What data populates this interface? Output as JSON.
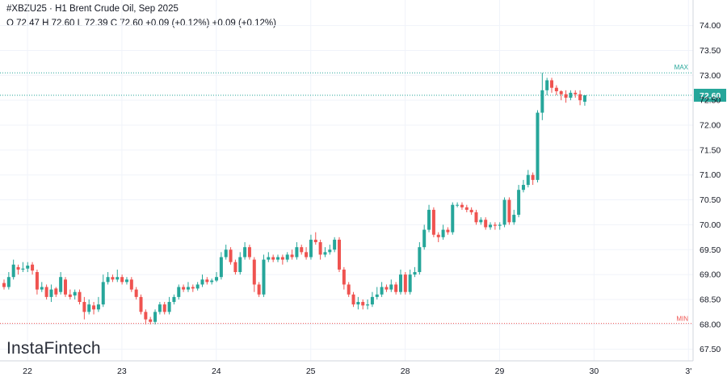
{
  "header": {
    "symbol": "#XBZU25",
    "title_sep": " · ",
    "description": "H1 Brent Crude Oil, Sep 2025",
    "ohlc": "O 72.47 H 72.60 L 72.39 C 72.60 +0.09 (+0.12%) +0.09 (+0.12%)"
  },
  "logo": {
    "text": "InstaFintech"
  },
  "colors": {
    "up": "#26a69a",
    "down": "#ef5350",
    "grid": "#f0f3fa",
    "max_line": "#26a69a",
    "min_line": "#ef5350",
    "last_price_line": "#26a69a"
  },
  "chart_data": {
    "type": "candlestick",
    "ylim": [
      67.3,
      74.35
    ],
    "y_ticks": [
      "74.00",
      "73.50",
      "73.00",
      "72.50",
      "72.00",
      "71.50",
      "71.00",
      "70.50",
      "70.00",
      "69.50",
      "69.00",
      "68.50",
      "68.00",
      "67.50"
    ],
    "y_tick_values": [
      74.0,
      73.5,
      73.0,
      72.5,
      72.0,
      71.5,
      71.0,
      70.5,
      70.0,
      69.5,
      69.0,
      68.5,
      68.0,
      67.5
    ],
    "x_ticks": [
      "22",
      "23",
      "24",
      "25",
      "28",
      "29",
      "30",
      "3'"
    ],
    "x_tick_index": [
      0,
      20,
      40,
      60,
      80,
      100,
      120,
      140
    ],
    "last_price": "72.60",
    "max_level": 73.05,
    "max_label": "MAX",
    "min_level": 68.02,
    "min_label": "MIN",
    "candles": [
      [
        68.83,
        68.75,
        68.9,
        68.7
      ],
      [
        68.75,
        68.95,
        69.05,
        68.7
      ],
      [
        68.95,
        69.2,
        69.3,
        68.9
      ],
      [
        69.15,
        69.1,
        69.2,
        69.0
      ],
      [
        69.1,
        69.12,
        69.25,
        69.05
      ],
      [
        69.12,
        69.18,
        69.25,
        69.05
      ],
      [
        69.2,
        69.08,
        69.25,
        69.0
      ],
      [
        69.05,
        68.7,
        69.1,
        68.6
      ],
      [
        68.7,
        68.75,
        68.85,
        68.65
      ],
      [
        68.75,
        68.55,
        68.8,
        68.5
      ],
      [
        68.55,
        68.7,
        68.8,
        68.45
      ],
      [
        68.72,
        68.6,
        68.75,
        68.55
      ],
      [
        68.65,
        68.95,
        69.05,
        68.6
      ],
      [
        68.9,
        68.6,
        68.95,
        68.55
      ],
      [
        68.6,
        68.55,
        68.7,
        68.5
      ],
      [
        68.58,
        68.65,
        68.7,
        68.5
      ],
      [
        68.65,
        68.45,
        68.7,
        68.4
      ],
      [
        68.45,
        68.25,
        68.55,
        68.1
      ],
      [
        68.25,
        68.4,
        68.5,
        68.2
      ],
      [
        68.38,
        68.3,
        68.45,
        68.2
      ],
      [
        68.3,
        68.4,
        68.55,
        68.25
      ],
      [
        68.4,
        68.85,
        69.0,
        68.35
      ],
      [
        68.85,
        68.95,
        69.05,
        68.8
      ],
      [
        68.95,
        68.9,
        69.0,
        68.85
      ],
      [
        68.9,
        68.95,
        69.1,
        68.85
      ],
      [
        68.95,
        68.85,
        69.0,
        68.8
      ],
      [
        68.85,
        68.9,
        68.95,
        68.8
      ],
      [
        68.9,
        68.7,
        68.95,
        68.65
      ],
      [
        68.7,
        68.55,
        68.75,
        68.5
      ],
      [
        68.55,
        68.25,
        68.6,
        68.2
      ],
      [
        68.25,
        68.1,
        68.3,
        68.0
      ],
      [
        68.1,
        68.05,
        68.15,
        68.0
      ],
      [
        68.05,
        68.25,
        68.3,
        68.0
      ],
      [
        68.25,
        68.4,
        68.45,
        68.2
      ],
      [
        68.4,
        68.25,
        68.45,
        68.2
      ],
      [
        68.25,
        68.45,
        68.55,
        68.2
      ],
      [
        68.45,
        68.55,
        68.6,
        68.4
      ],
      [
        68.55,
        68.75,
        68.8,
        68.5
      ],
      [
        68.75,
        68.7,
        68.8,
        68.65
      ],
      [
        68.7,
        68.75,
        68.85,
        68.65
      ],
      [
        68.75,
        68.72,
        68.8,
        68.65
      ],
      [
        68.72,
        68.8,
        68.85,
        68.68
      ],
      [
        68.8,
        68.9,
        69.0,
        68.75
      ],
      [
        68.9,
        68.85,
        68.95,
        68.8
      ],
      [
        68.85,
        68.88,
        68.92,
        68.8
      ],
      [
        68.88,
        68.95,
        69.05,
        68.85
      ],
      [
        68.95,
        69.35,
        69.45,
        68.9
      ],
      [
        69.35,
        69.5,
        69.6,
        69.3
      ],
      [
        69.5,
        69.25,
        69.55,
        69.2
      ],
      [
        69.25,
        69.05,
        69.3,
        69.0
      ],
      [
        69.05,
        69.35,
        69.45,
        69.0
      ],
      [
        69.35,
        69.55,
        69.65,
        69.3
      ],
      [
        69.55,
        69.35,
        69.6,
        69.3
      ],
      [
        69.3,
        68.8,
        69.35,
        68.65
      ],
      [
        68.8,
        68.6,
        68.85,
        68.55
      ],
      [
        68.6,
        69.3,
        69.4,
        68.55
      ],
      [
        69.3,
        69.35,
        69.45,
        69.25
      ],
      [
        69.35,
        69.3,
        69.4,
        69.25
      ],
      [
        69.3,
        69.35,
        69.4,
        69.25
      ],
      [
        69.35,
        69.3,
        69.4,
        69.2
      ],
      [
        69.3,
        69.4,
        69.45,
        69.25
      ],
      [
        69.4,
        69.35,
        69.5,
        69.3
      ],
      [
        69.35,
        69.55,
        69.65,
        69.3
      ],
      [
        69.55,
        69.45,
        69.6,
        69.4
      ],
      [
        69.45,
        69.35,
        69.55,
        69.3
      ],
      [
        69.35,
        69.7,
        69.8,
        69.3
      ],
      [
        69.7,
        69.65,
        69.85,
        69.6
      ],
      [
        69.65,
        69.4,
        69.7,
        69.3
      ],
      [
        69.4,
        69.45,
        69.55,
        69.35
      ],
      [
        69.45,
        69.5,
        69.6,
        69.4
      ],
      [
        69.5,
        69.7,
        69.75,
        69.45
      ],
      [
        69.7,
        69.1,
        69.75,
        69.05
      ],
      [
        69.1,
        68.8,
        69.15,
        68.7
      ],
      [
        68.8,
        68.6,
        68.85,
        68.55
      ],
      [
        68.6,
        68.4,
        68.65,
        68.35
      ],
      [
        68.4,
        68.45,
        68.55,
        68.3
      ],
      [
        68.45,
        68.38,
        68.5,
        68.3
      ],
      [
        68.38,
        68.4,
        68.5,
        68.3
      ],
      [
        68.4,
        68.55,
        68.65,
        68.35
      ],
      [
        68.55,
        68.6,
        68.75,
        68.5
      ],
      [
        68.6,
        68.75,
        68.85,
        68.55
      ],
      [
        68.75,
        68.7,
        68.8,
        68.65
      ],
      [
        68.7,
        68.8,
        68.9,
        68.65
      ],
      [
        68.8,
        68.65,
        68.85,
        68.6
      ],
      [
        68.65,
        69.0,
        69.1,
        68.6
      ],
      [
        69.0,
        68.65,
        69.05,
        68.6
      ],
      [
        68.65,
        69.0,
        69.1,
        68.6
      ],
      [
        69.0,
        69.05,
        69.15,
        68.95
      ],
      [
        69.05,
        69.55,
        69.65,
        69.0
      ],
      [
        69.55,
        69.9,
        70.0,
        69.5
      ],
      [
        69.9,
        70.3,
        70.4,
        69.85
      ],
      [
        70.3,
        69.8,
        70.35,
        69.75
      ],
      [
        69.8,
        69.75,
        69.85,
        69.65
      ],
      [
        69.75,
        69.9,
        70.0,
        69.7
      ],
      [
        69.9,
        69.85,
        69.95,
        69.8
      ],
      [
        69.85,
        70.4,
        70.45,
        69.8
      ],
      [
        70.4,
        70.4,
        70.45,
        70.35
      ],
      [
        70.4,
        70.35,
        70.45,
        70.3
      ],
      [
        70.35,
        70.3,
        70.4,
        70.25
      ],
      [
        70.3,
        70.25,
        70.35,
        70.2
      ],
      [
        70.25,
        70.05,
        70.3,
        70.0
      ],
      [
        70.05,
        70.1,
        70.15,
        70.0
      ],
      [
        70.1,
        69.95,
        70.15,
        69.9
      ],
      [
        69.95,
        70.0,
        70.05,
        69.9
      ],
      [
        70.0,
        69.98,
        70.05,
        69.9
      ],
      [
        69.98,
        70.0,
        70.05,
        69.9
      ],
      [
        70.0,
        70.5,
        70.55,
        69.95
      ],
      [
        70.5,
        70.05,
        70.55,
        70.0
      ],
      [
        70.05,
        70.2,
        70.3,
        70.0
      ],
      [
        70.2,
        70.7,
        70.8,
        70.15
      ],
      [
        70.7,
        70.8,
        70.9,
        70.65
      ],
      [
        70.8,
        71.0,
        71.1,
        70.75
      ],
      [
        71.0,
        70.9,
        71.05,
        70.8
      ],
      [
        70.9,
        72.25,
        72.3,
        70.85
      ],
      [
        72.25,
        72.7,
        73.05,
        72.1
      ],
      [
        72.7,
        72.9,
        72.95,
        72.6
      ],
      [
        72.9,
        72.75,
        72.95,
        72.65
      ],
      [
        72.75,
        72.68,
        72.8,
        72.6
      ],
      [
        72.68,
        72.62,
        72.7,
        72.5
      ],
      [
        72.62,
        72.55,
        72.7,
        72.45
      ],
      [
        72.55,
        72.65,
        72.7,
        72.5
      ],
      [
        72.65,
        72.62,
        72.7,
        72.55
      ],
      [
        72.62,
        72.5,
        72.7,
        72.4
      ],
      [
        72.47,
        72.6,
        72.6,
        72.39
      ]
    ]
  }
}
